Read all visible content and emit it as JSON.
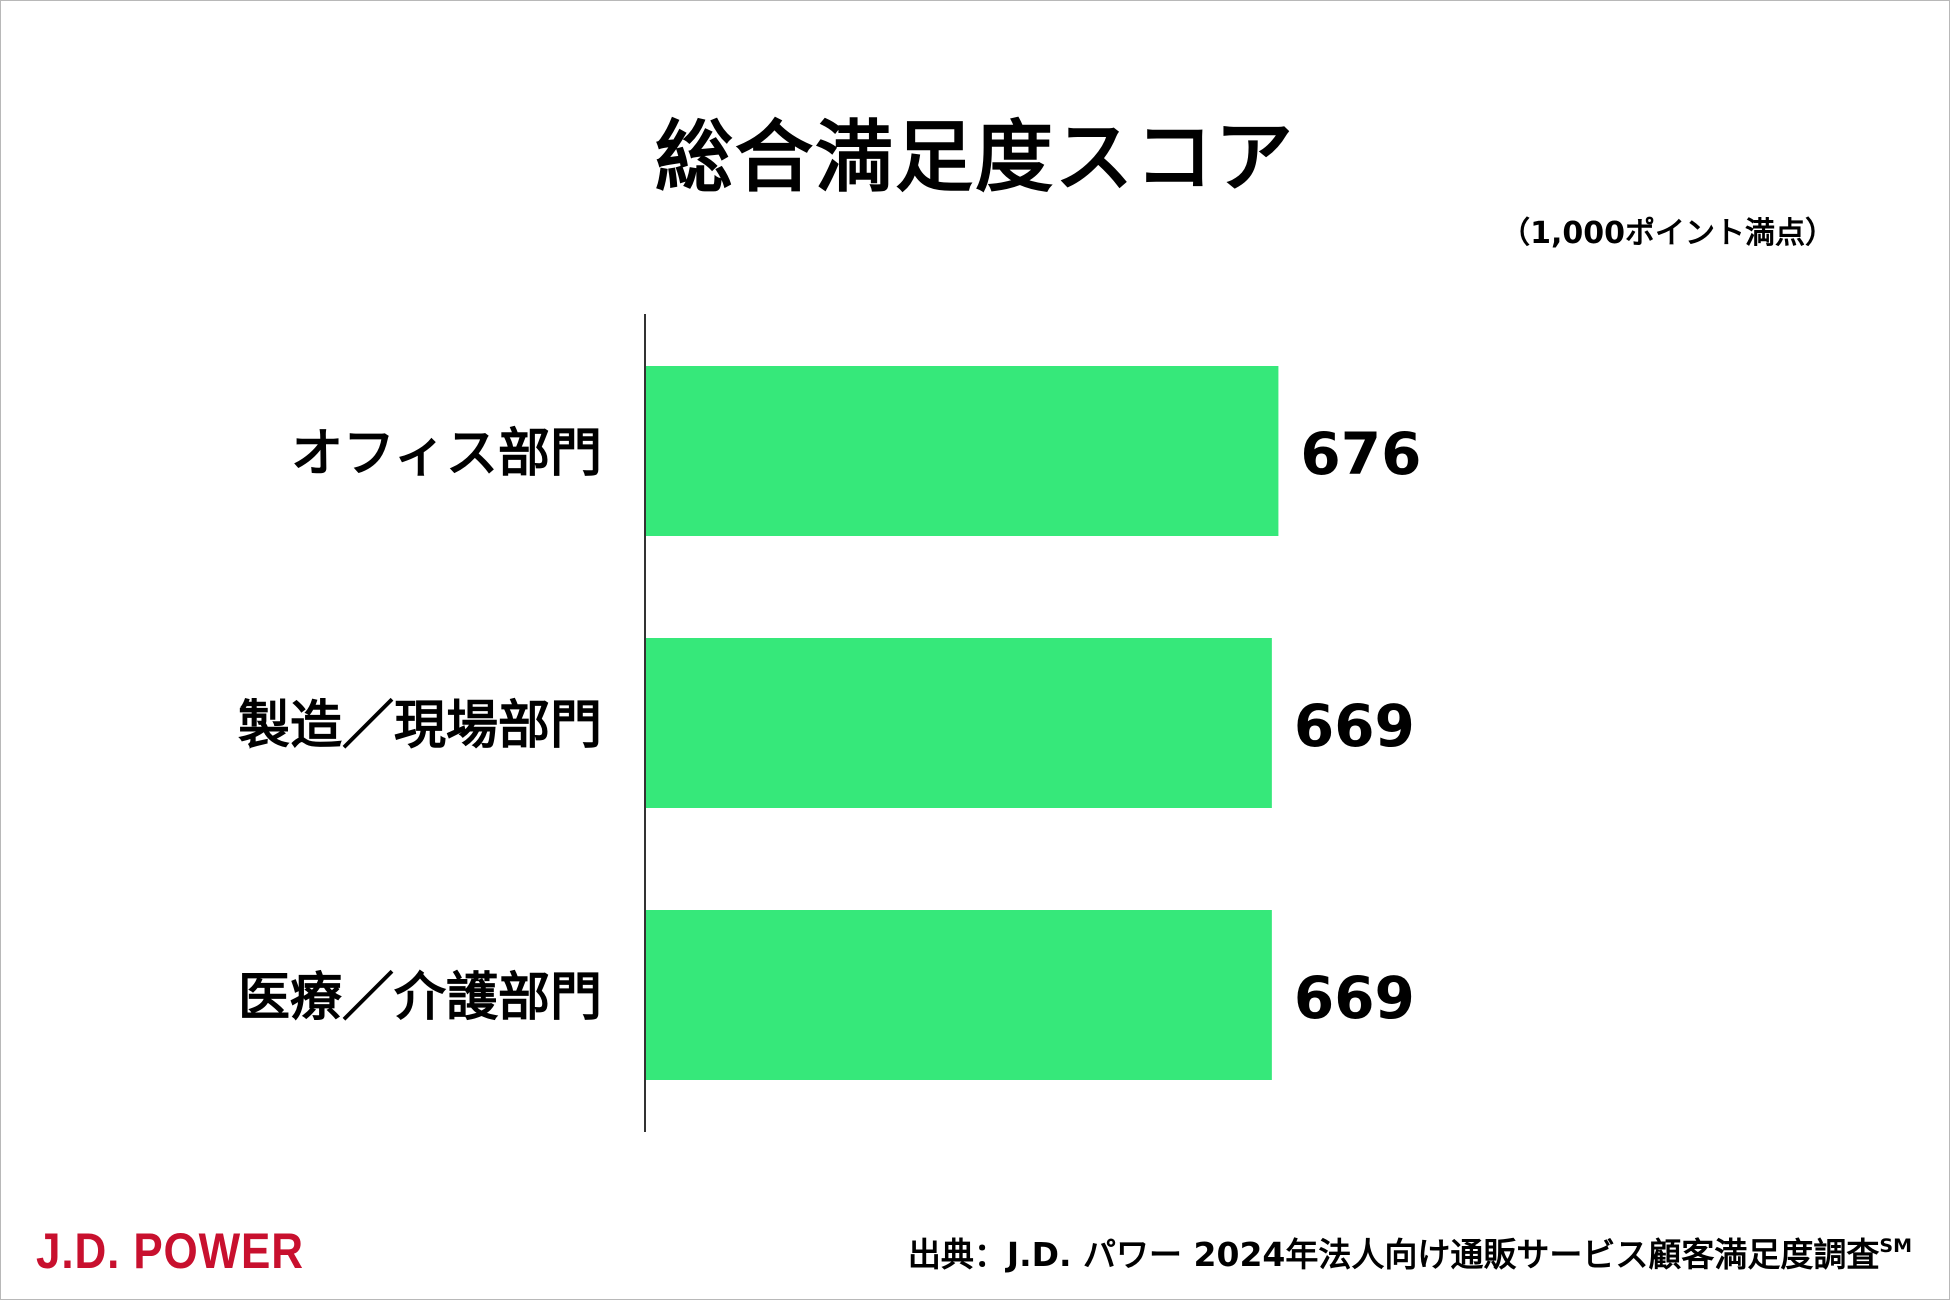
{
  "title": "総合満足度スコア",
  "unit_note": "（1,000ポイント満点）",
  "source": {
    "text": "出典：J.D. パワー 2024年法人向け通販サービス顧客満足度調査",
    "mark": "SM"
  },
  "logo": {
    "text": "J.D. POWER",
    "color": "#c8102e"
  },
  "colors": {
    "bar": "#36e87a",
    "axis": "#333333",
    "text": "#000000"
  },
  "chart_data": {
    "type": "bar",
    "orientation": "horizontal",
    "categories": [
      "オフィス部門",
      "製造／現場部門",
      "医療／介護部門"
    ],
    "values": [
      676,
      669,
      669
    ],
    "xlim": [
      0,
      1000
    ],
    "grid": false,
    "data_labels": true
  }
}
